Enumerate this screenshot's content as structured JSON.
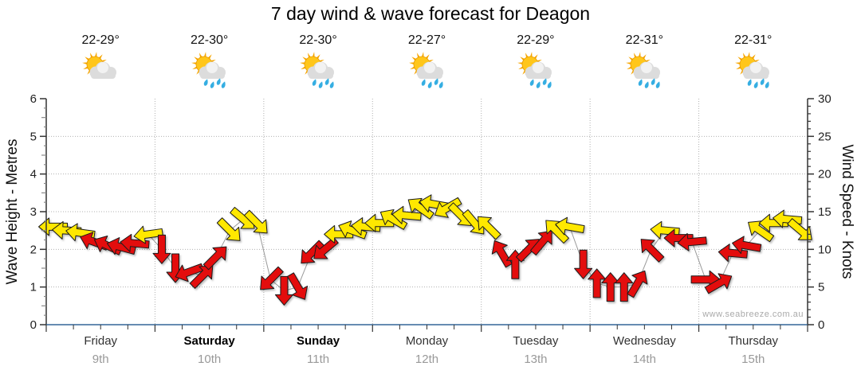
{
  "title": "7 day wind & wave forecast for Deagon",
  "watermark": "www.seabreeze.com.au",
  "axes": {
    "left_label": "Wave Height - Metres",
    "right_label": "Wind Speed - Knots",
    "left_ticks": [
      0,
      1,
      2,
      3,
      4,
      5,
      6
    ],
    "right_ticks": [
      0,
      5,
      10,
      15,
      20,
      25,
      30
    ]
  },
  "days": [
    {
      "name": "Friday",
      "date": "9th",
      "temp": "22-29°",
      "icon": "partly-cloudy-icon",
      "bold": false
    },
    {
      "name": "Saturday",
      "date": "10th",
      "temp": "22-30°",
      "icon": "sun-showers-icon",
      "bold": true
    },
    {
      "name": "Sunday",
      "date": "11th",
      "temp": "22-30°",
      "icon": "sun-showers-icon",
      "bold": true
    },
    {
      "name": "Monday",
      "date": "12th",
      "temp": "22-27°",
      "icon": "sun-showers-icon",
      "bold": false
    },
    {
      "name": "Tuesday",
      "date": "13th",
      "temp": "22-29°",
      "icon": "sun-showers-icon",
      "bold": false
    },
    {
      "name": "Wednesday",
      "date": "14th",
      "temp": "22-31°",
      "icon": "sun-showers-icon",
      "bold": false
    },
    {
      "name": "Thursday",
      "date": "15th",
      "temp": "22-31°",
      "icon": "sun-showers-icon",
      "bold": false
    }
  ],
  "colors": {
    "arrow_low": "#e31010",
    "arrow_high": "#ffe800",
    "arrow_outline": "#1a1a1a",
    "bottom_axis": "#336699",
    "axis": "#333333",
    "grid": "#b0b0b0",
    "trend_line": "#999999",
    "tick_label": "#222222",
    "date_label": "#999999",
    "sun": "#ffc61a",
    "sun_rays": "#f7a600",
    "cloud": "#dcdcdc",
    "raindrop": "#35aee2"
  },
  "chart_data": {
    "type": "wind-arrow-time-series",
    "title": "7 day wind & wave forecast for Deagon",
    "x_axis": "time, 3-hourly steps from Friday 00:00 over 7 days",
    "left_axis": {
      "label": "Wave Height - Metres",
      "range": [
        0,
        6
      ]
    },
    "right_axis": {
      "label": "Wind Speed - Knots",
      "range": [
        0,
        30
      ]
    },
    "grid": "dotted horizontal at each metre, dotted vertical at day boundaries",
    "arrow_color_rule": "knots >= 12 -> yellow (arrow_high), else red (arrow_low)",
    "point_format": "[wind_speed_knots, arrow_direction_deg_clockwise_0_is_east]",
    "points": [
      [
        13,
        180
      ],
      [
        12.5,
        183
      ],
      [
        12.2,
        188
      ],
      [
        11,
        200
      ],
      [
        10.5,
        205
      ],
      [
        10.3,
        195
      ],
      [
        10.8,
        185
      ],
      [
        12,
        172
      ],
      [
        10,
        90
      ],
      [
        7.5,
        90
      ],
      [
        7,
        160
      ],
      [
        6.5,
        315
      ],
      [
        9,
        315
      ],
      [
        12.5,
        45
      ],
      [
        14,
        40
      ],
      [
        13.5,
        45
      ],
      [
        6,
        135
      ],
      [
        4.5,
        90
      ],
      [
        5,
        60
      ],
      [
        9.5,
        135
      ],
      [
        10,
        140
      ],
      [
        12,
        180
      ],
      [
        12.5,
        200
      ],
      [
        13,
        185
      ],
      [
        13.5,
        180
      ],
      [
        14,
        210
      ],
      [
        14.5,
        185
      ],
      [
        15.5,
        215
      ],
      [
        16,
        190
      ],
      [
        15.5,
        150
      ],
      [
        14.5,
        45
      ],
      [
        13.5,
        50
      ],
      [
        13,
        225
      ],
      [
        9.5,
        240
      ],
      [
        8,
        270
      ],
      [
        10,
        315
      ],
      [
        11,
        310
      ],
      [
        12.5,
        225
      ],
      [
        13,
        190
      ],
      [
        8,
        90
      ],
      [
        5.5,
        270
      ],
      [
        5,
        270
      ],
      [
        5,
        270
      ],
      [
        5.5,
        300
      ],
      [
        10,
        225
      ],
      [
        12.5,
        185
      ],
      [
        11.5,
        180
      ],
      [
        11,
        175
      ],
      [
        6,
        0
      ],
      [
        5.5,
        330
      ],
      [
        9.5,
        185
      ],
      [
        10.5,
        190
      ],
      [
        12.5,
        215
      ],
      [
        13.5,
        180
      ],
      [
        14,
        185
      ],
      [
        12.5,
        40
      ]
    ]
  }
}
